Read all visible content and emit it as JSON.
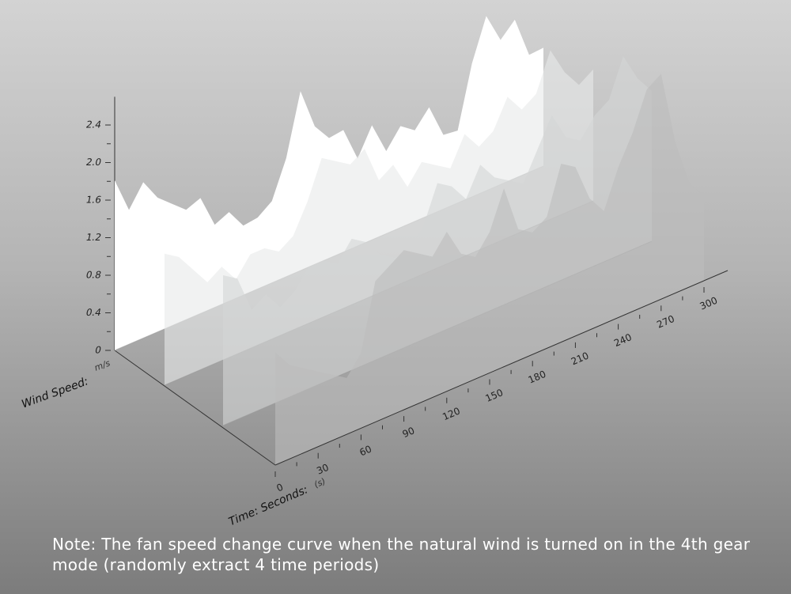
{
  "chart_data": {
    "type": "area3d",
    "y_axis_label": "Wind Speed:",
    "y_axis_unit": "m/s",
    "x_axis_label": "Time: Seconds:",
    "x_axis_unit": "(s)",
    "note": "Note: The fan speed change curve when the natural wind is turned on in the 4th gear mode (randomly extract 4 time periods)",
    "x": [
      0,
      10,
      20,
      30,
      40,
      50,
      60,
      70,
      80,
      90,
      100,
      110,
      120,
      130,
      140,
      150,
      160,
      170,
      180,
      190,
      200,
      210,
      220,
      230,
      240,
      250,
      260,
      270,
      280,
      290,
      300
    ],
    "series": [
      {
        "color": "#ffffff",
        "values": [
          1.81,
          1.43,
          1.66,
          1.43,
          1.3,
          1.17,
          1.23,
          0.88,
          0.95,
          0.74,
          0.76,
          0.87,
          1.26,
          1.91,
          1.47,
          1.28,
          1.3,
          0.93,
          1.22,
          0.88,
          1.08,
          0.97,
          1.15,
          0.79,
          0.77,
          1.42,
          1.86,
          1.54,
          1.69,
          1.25,
          1.26
        ]
      },
      {
        "color": "#e8eaea",
        "values": [
          1.4,
          1.3,
          1.1,
          0.9,
          1.0,
          0.8,
          1.0,
          1.0,
          0.9,
          1.0,
          1.3,
          1.7,
          1.6,
          1.5,
          1.6,
          1.2,
          1.3,
          1.0,
          1.2,
          1.1,
          1.0,
          1.3,
          1.1,
          1.2,
          1.5,
          1.3,
          1.4,
          1.8,
          1.5,
          1.3,
          1.4
        ]
      },
      {
        "color": "#d4d6d6",
        "values": [
          1.6,
          1.5,
          1.1,
          1.2,
          1.0,
          1.1,
          1.3,
          1.3,
          1.2,
          1.4,
          1.3,
          1.1,
          1.0,
          1.0,
          1.2,
          1.6,
          1.5,
          1.3,
          1.6,
          1.4,
          1.3,
          1.2,
          1.5,
          1.8,
          1.5,
          1.4,
          1.6,
          1.7,
          2.1,
          1.8,
          1.6
        ]
      },
      {
        "color": "#bdbdbd",
        "values": [
          1.2,
          1.0,
          0.9,
          0.8,
          0.7,
          0.6,
          0.8,
          1.5,
          1.6,
          1.7,
          1.6,
          1.5,
          1.7,
          1.4,
          1.3,
          1.5,
          1.9,
          1.4,
          1.3,
          1.4,
          1.9,
          1.8,
          1.4,
          1.2,
          1.6,
          1.9,
          2.3,
          2.4,
          1.6,
          1.1,
          0.9
        ]
      }
    ],
    "xlim": [
      0,
      300
    ],
    "xticks": [
      0,
      30,
      60,
      90,
      120,
      150,
      180,
      210,
      240,
      270,
      300
    ],
    "x_minor_ticks": [
      15,
      45,
      75,
      105,
      135,
      165,
      195,
      225,
      255,
      285
    ],
    "ylim": [
      0,
      2.7
    ],
    "yticks": [
      0,
      0.4,
      0.8,
      {
        "value": 1.2,
        "label": "1.2"
      },
      1.6,
      {
        "value": 2,
        "label": "2.0"
      },
      2.4
    ],
    "y_minor_ticks": [
      0.2,
      0.6,
      1.0,
      1.4,
      1.8,
      2.2
    ]
  }
}
